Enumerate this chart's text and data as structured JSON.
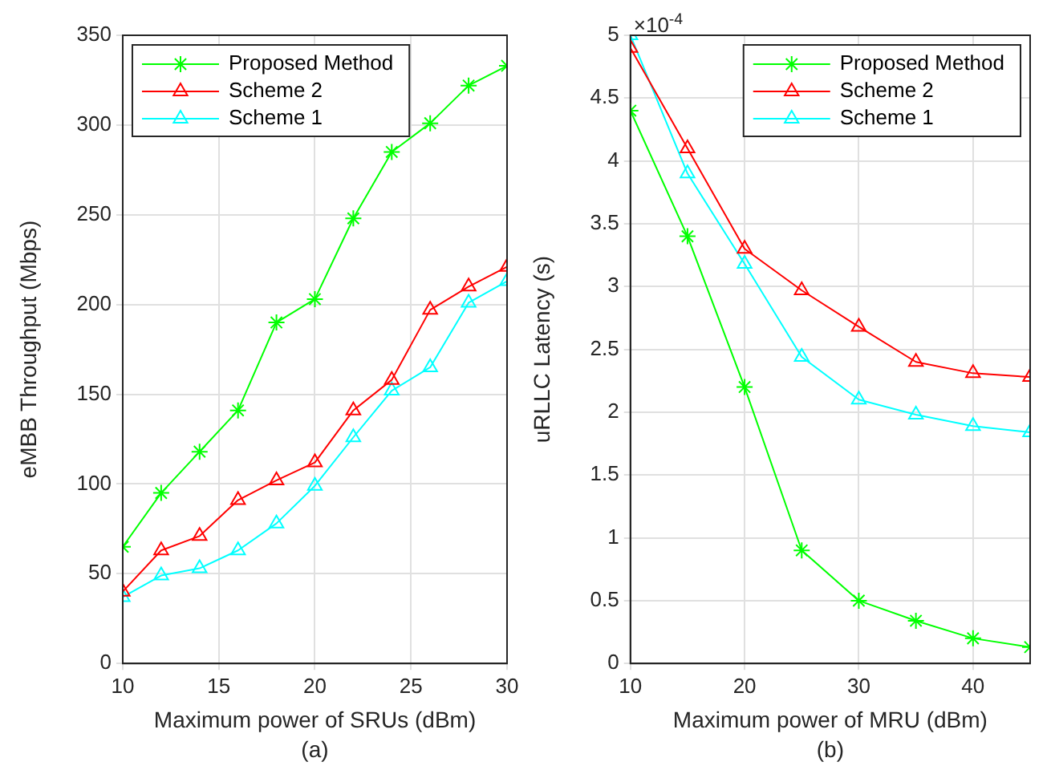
{
  "chart_data": [
    {
      "type": "line",
      "xlabel": "Maximum power of SRUs (dBm)",
      "ylabel": "eMBB Throughput (Mbps)",
      "x": [
        10,
        12,
        14,
        16,
        18,
        20,
        22,
        24,
        26,
        28,
        30
      ],
      "xlim": [
        10,
        30
      ],
      "xticks": [
        10,
        15,
        20,
        25,
        30
      ],
      "ylim": [
        0,
        350
      ],
      "yticks": [
        0,
        50,
        100,
        150,
        200,
        250,
        300,
        350
      ],
      "grid": true,
      "legend": "top left",
      "annotations": [
        "(a)"
      ],
      "series": [
        {
          "name": "Proposed Method",
          "color": "#00ff00",
          "marker": "cross",
          "values": [
            65,
            95,
            118,
            141,
            190,
            203,
            248,
            285,
            301,
            322,
            333
          ]
        },
        {
          "name": "Scheme 2",
          "color": "#ff0000",
          "marker": "triangle",
          "values": [
            40,
            63,
            71,
            91,
            102,
            112,
            141,
            158,
            197,
            210,
            221
          ]
        },
        {
          "name": "Scheme 1",
          "color": "#00ffff",
          "marker": "triangle",
          "values": [
            37,
            49,
            53,
            63,
            78,
            99,
            126,
            152,
            165,
            201,
            213
          ]
        }
      ]
    },
    {
      "type": "line",
      "xlabel": "Maximum power of MRU (dBm)",
      "ylabel": "uRLLC Latency (s)",
      "x": [
        10,
        15,
        20,
        25,
        30,
        35,
        40,
        45
      ],
      "xlim": [
        10,
        45
      ],
      "xticks": [
        10,
        20,
        30,
        40
      ],
      "ylim": [
        0,
        5
      ],
      "yticks": [
        0,
        0.5,
        1,
        1.5,
        2,
        2.5,
        3,
        3.5,
        4,
        4.5,
        5
      ],
      "grid": true,
      "legend": "top right",
      "annotations": [
        {
          "text": "×10$^{-4}$",
          "x": 10,
          "y": 5
        },
        "(b)"
      ],
      "series": [
        {
          "name": "Proposed Method",
          "color": "#00ff00",
          "marker": "cross",
          "values": [
            4.4,
            3.4,
            2.2,
            0.9,
            0.5,
            0.34,
            0.2,
            0.13
          ]
        },
        {
          "name": "Scheme 2",
          "color": "#ff0000",
          "marker": "triangle",
          "values": [
            4.9,
            4.1,
            3.3,
            2.97,
            2.68,
            2.4,
            2.31,
            2.28
          ]
        },
        {
          "name": "Scheme 1",
          "color": "#00ffff",
          "marker": "triangle",
          "values": [
            5.0,
            3.9,
            3.18,
            2.44,
            2.1,
            1.98,
            1.89,
            1.84
          ]
        }
      ]
    }
  ]
}
